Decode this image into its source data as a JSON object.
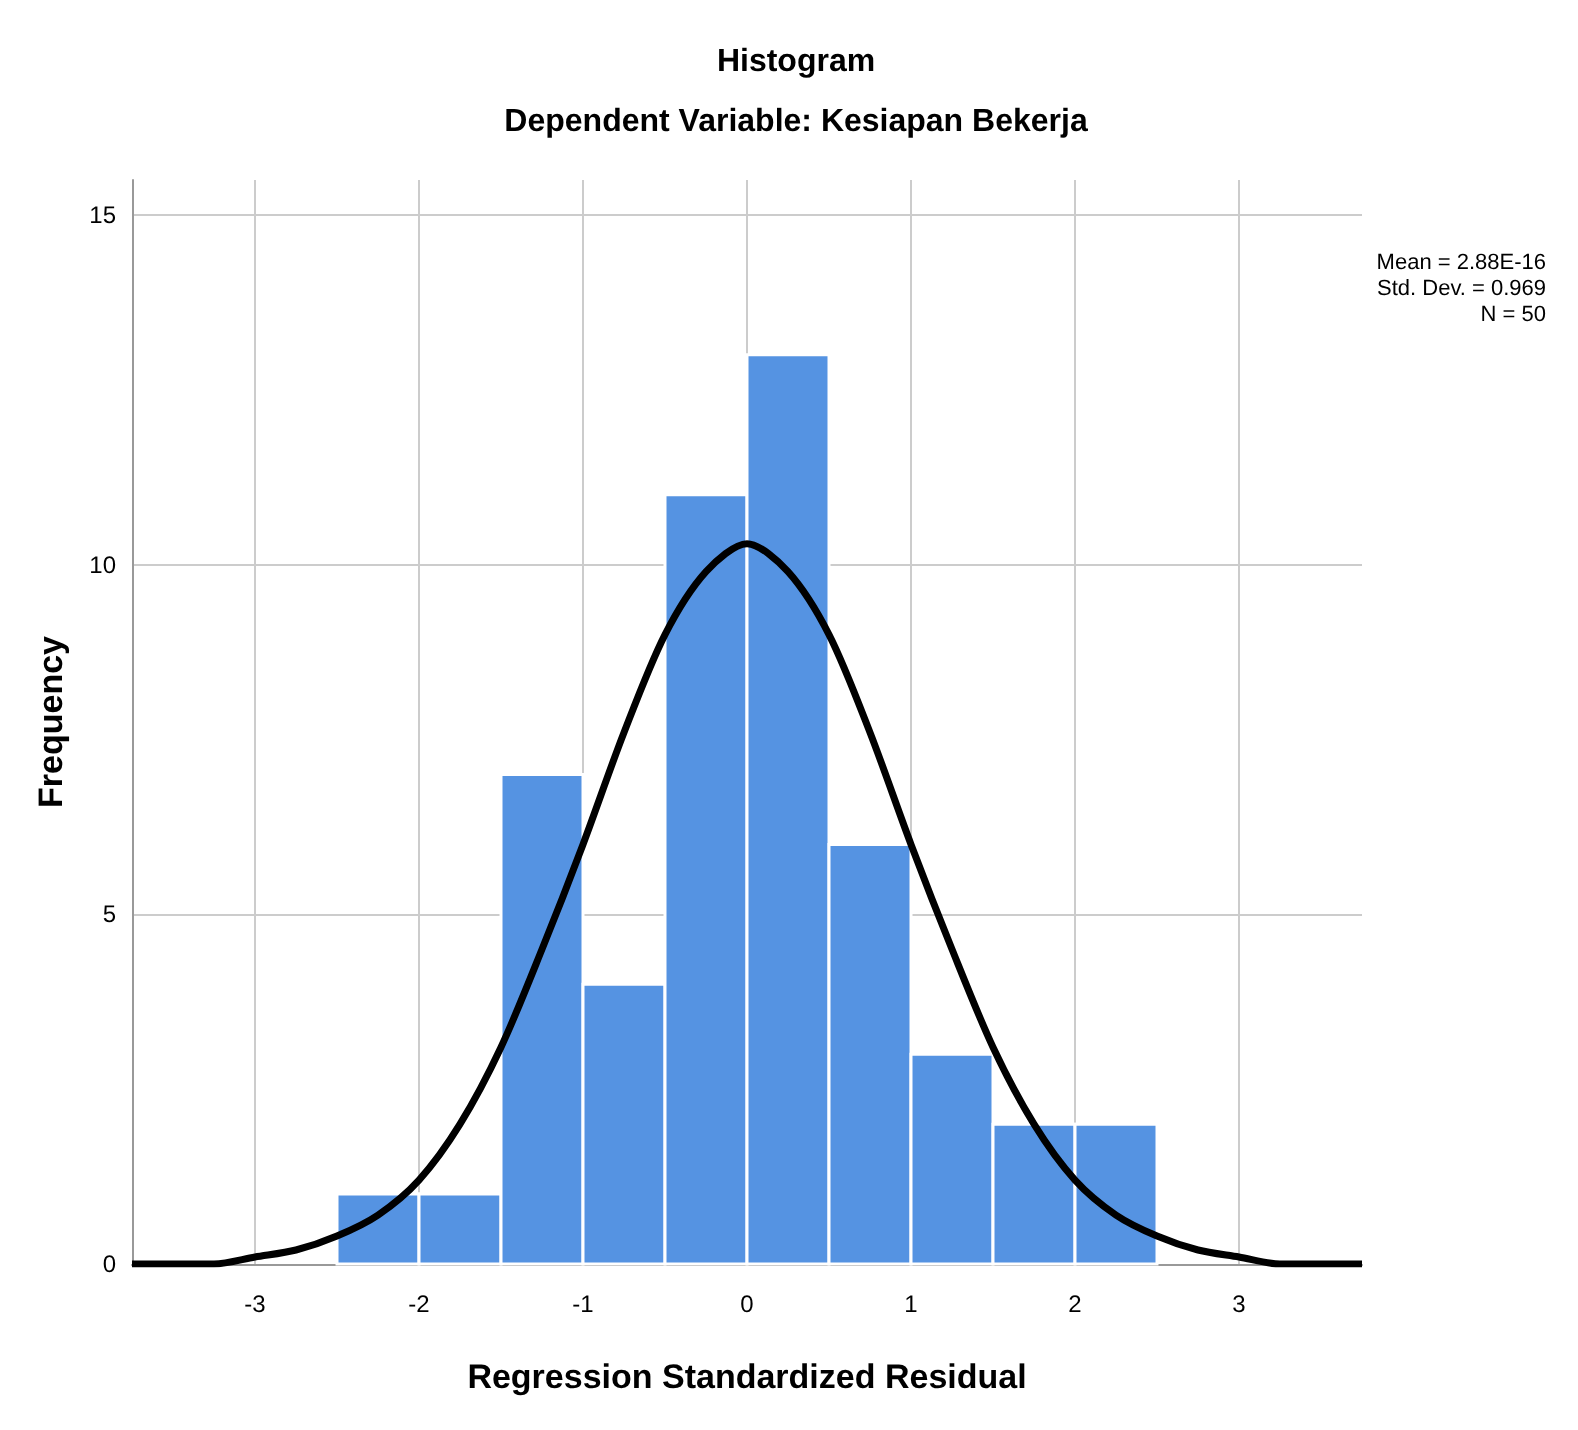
{
  "chart_data": {
    "type": "histogram",
    "title": "Histogram",
    "subtitle": "Dependent Variable: Kesiapan Bekerja",
    "xlabel": "Regression Standardized Residual",
    "ylabel": "Frequency",
    "annotations": [
      "Mean = 2.88E-16",
      "Std. Dev. = 0.969",
      "N = 50"
    ],
    "bins": [
      -2.5,
      -2,
      -1.5,
      -1,
      -0.5,
      0,
      0.5,
      1,
      1.5,
      2,
      2.5
    ],
    "values": [
      1,
      1,
      7,
      4,
      11,
      13,
      6,
      3,
      2,
      2
    ],
    "color": "#5593e2",
    "series": [
      {
        "type": "line",
        "color": "#000000",
        "x": [
          -3.75,
          -3.5,
          -3.25,
          -3,
          -2.75,
          -2.5,
          -2.25,
          -2,
          -1.75,
          -1.5,
          -1.25,
          -1,
          -0.75,
          -0.5,
          -0.25,
          0,
          0.25,
          0.5,
          0.75,
          1,
          1.25,
          1.5,
          1.75,
          2,
          2.25,
          2.5,
          2.75,
          3,
          3.25,
          3.5,
          3.75
        ],
        "values": [
          0,
          0,
          0,
          0.1,
          0.2,
          0.4,
          0.7,
          1.2,
          2,
          3.1,
          4.5,
          6,
          7.6,
          9,
          9.9,
          10.3,
          9.9,
          9,
          7.6,
          6,
          4.5,
          3.1,
          2,
          1.2,
          0.7,
          0.4,
          0.2,
          0.1,
          0,
          0,
          0
        ]
      }
    ],
    "xlim": [
      -3.75,
      3.75
    ],
    "xticks": [
      -3,
      -2,
      -1,
      0,
      1,
      2,
      3
    ],
    "ylim": [
      0,
      15.5
    ],
    "yticks": [
      0,
      5,
      10,
      15
    ],
    "grid": true,
    "marker": "none",
    "line_style": "solid"
  }
}
